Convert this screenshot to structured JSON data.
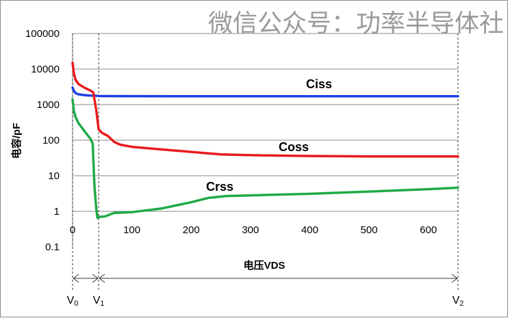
{
  "watermark": "微信公众号：功率半导体社",
  "chart_data": {
    "type": "line",
    "xlabel": "电压VDS",
    "ylabel": "电容/pF",
    "yscale": "log",
    "ylim": [
      0.1,
      100000
    ],
    "xlim": [
      0,
      650
    ],
    "grid": "horizontal",
    "x_ticks": [
      "0",
      "100",
      "200",
      "300",
      "400",
      "500",
      "600"
    ],
    "y_ticks": [
      "0.1",
      "1",
      "10",
      "100",
      "1000",
      "10000",
      "100000"
    ],
    "markers": [
      {
        "main": "V",
        "sub": "0",
        "x": 0
      },
      {
        "main": "V",
        "sub": "1",
        "x": 44
      },
      {
        "main": "V",
        "sub": "2",
        "x": 650
      }
    ],
    "series": [
      {
        "name": "Ciss",
        "color": "#1f3fe0",
        "x": [
          0,
          2,
          5,
          10,
          20,
          30,
          40,
          44,
          50,
          100,
          200,
          300,
          400,
          500,
          600,
          650
        ],
        "y": [
          3000,
          2500,
          2100,
          1950,
          1850,
          1800,
          1780,
          1750,
          1740,
          1730,
          1720,
          1720,
          1720,
          1720,
          1720,
          1720
        ]
      },
      {
        "name": "Coss",
        "color": "#e81c1c",
        "x": [
          0,
          2,
          5,
          10,
          20,
          30,
          35,
          40,
          44,
          50,
          60,
          70,
          80,
          100,
          150,
          200,
          250,
          300,
          400,
          500,
          600,
          650
        ],
        "y": [
          15000,
          8000,
          5000,
          3800,
          3000,
          2500,
          2200,
          700,
          200,
          160,
          130,
          90,
          75,
          65,
          55,
          47,
          40,
          38,
          36,
          35,
          35,
          35
        ]
      },
      {
        "name": "Crss",
        "color": "#1faa45",
        "x": [
          0,
          2,
          5,
          10,
          20,
          30,
          34,
          37,
          40,
          42,
          46,
          55,
          70,
          100,
          150,
          200,
          230,
          260,
          300,
          400,
          500,
          600,
          650
        ],
        "y": [
          1400,
          700,
          450,
          300,
          180,
          110,
          80,
          5,
          1.2,
          0.65,
          0.7,
          0.72,
          0.9,
          0.95,
          1.2,
          1.8,
          2.4,
          2.7,
          2.8,
          3.1,
          3.6,
          4.2,
          4.6
        ]
      }
    ]
  }
}
